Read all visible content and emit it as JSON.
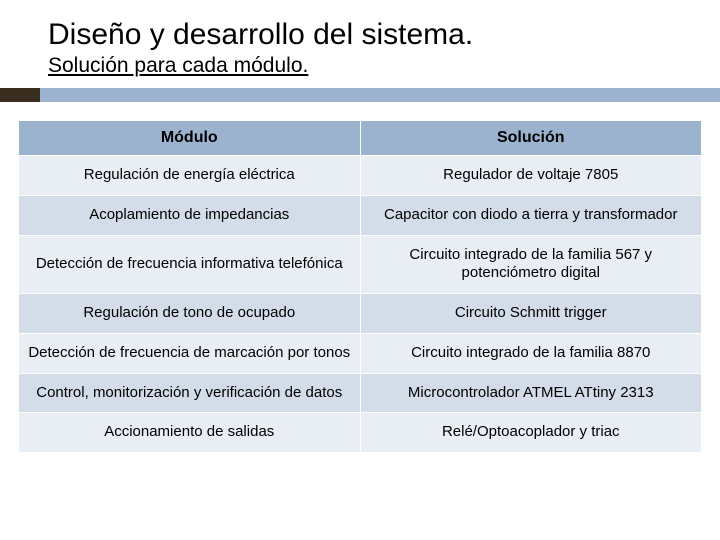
{
  "title": "Diseño y desarrollo del sistema.",
  "subtitle": "Solución para cada módulo.",
  "accent": {
    "left_color": "#382d1e",
    "right_color": "#9cb3cf"
  },
  "table": {
    "header_bg": "#9cb3cf",
    "row_alt_a_bg": "#e9edf4",
    "row_alt_b_bg": "#d3dce9",
    "columns": [
      "Módulo",
      "Solución"
    ],
    "rows": [
      [
        "Regulación de energía eléctrica",
        "Regulador de voltaje 7805"
      ],
      [
        "Acoplamiento de impedancias",
        "Capacitor con diodo a tierra y transformador"
      ],
      [
        "Detección de frecuencia informativa telefónica",
        "Circuito integrado de la familia 567 y potenciómetro digital"
      ],
      [
        "Regulación de tono de ocupado",
        "Circuito Schmitt trigger"
      ],
      [
        "Detección de frecuencia de marcación por tonos",
        "Circuito integrado de la familia 8870"
      ],
      [
        "Control, monitorización y verificación de datos",
        "Microcontrolador ATMEL ATtiny 2313"
      ],
      [
        "Accionamiento de salidas",
        "Relé/Optoacoplador y triac"
      ]
    ]
  }
}
